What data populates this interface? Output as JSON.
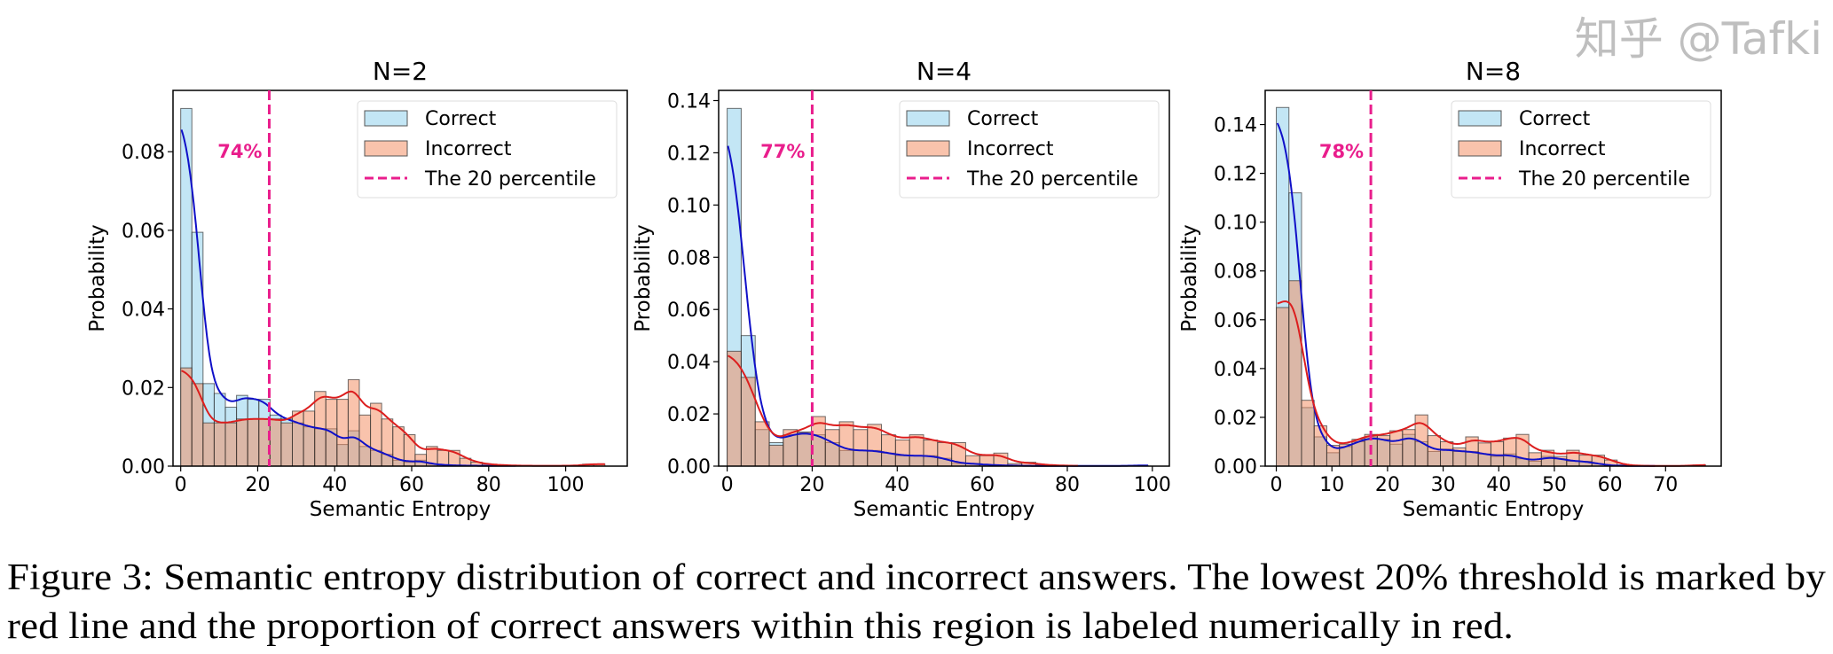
{
  "chart_data": [
    {
      "type": "histogram+kde",
      "title": "N=2",
      "xlabel": "Semantic Entropy",
      "ylabel": "Probability",
      "xlim": [
        -2,
        116
      ],
      "ylim": [
        0,
        0.0956
      ],
      "xticks": [
        0,
        20,
        40,
        60,
        80,
        100
      ],
      "yticks": [
        "0.00",
        "0.02",
        "0.04",
        "0.06",
        "0.08"
      ],
      "bin_width": 2.9,
      "percentile_line_x": 23,
      "percentile_label": "74%",
      "series": [
        {
          "name": "Correct",
          "values": [
            0.091,
            0.0595,
            0.021,
            0.0185,
            0.015,
            0.018,
            0.017,
            0.017,
            0.013,
            0.012,
            0.011,
            0.01,
            0.0095,
            0.0095,
            0.0055,
            0.009,
            0.005,
            0.004,
            0.003,
            0.0015,
            0.001,
            0.0015,
            0.0005,
            0.0003,
            0.0002,
            0.0001,
            0.0001,
            0.0001,
            0.0001,
            0.0001
          ]
        },
        {
          "name": "Incorrect",
          "values": [
            0.025,
            0.021,
            0.011,
            0.011,
            0.011,
            0.012,
            0.012,
            0.012,
            0.012,
            0.011,
            0.014,
            0.014,
            0.019,
            0.017,
            0.017,
            0.022,
            0.013,
            0.016,
            0.012,
            0.01,
            0.008,
            0.003,
            0.005,
            0.004,
            0.004,
            0.002,
            0.001,
            0.0005,
            0.0003,
            0.0002,
            0.0001,
            0.0001,
            0.0001,
            0.0001,
            0.0001,
            0.0001,
            0.0005,
            0.0005
          ]
        }
      ]
    },
    {
      "type": "histogram+kde",
      "title": "N=4",
      "xlabel": "Semantic Entropy",
      "ylabel": "Probability",
      "xlim": [
        -2,
        104
      ],
      "ylim": [
        0,
        0.1439
      ],
      "xticks": [
        0,
        20,
        40,
        60,
        80,
        100
      ],
      "yticks": [
        "0.00",
        "0.02",
        "0.04",
        "0.06",
        "0.08",
        "0.10",
        "0.12",
        "0.14"
      ],
      "bin_width": 3.3,
      "percentile_line_x": 20,
      "percentile_label": "77%",
      "series": [
        {
          "name": "Correct",
          "values": [
            0.137,
            0.05,
            0.014,
            0.009,
            0.012,
            0.013,
            0.012,
            0.009,
            0.006,
            0.006,
            0.006,
            0.005,
            0.004,
            0.004,
            0.004,
            0.003,
            0.001,
            0.001,
            0.0005,
            0.0003,
            0.0002,
            0.0001,
            0.0001,
            0.0001,
            0.0001,
            0.0001,
            0.0001,
            0.0001,
            0.0001,
            0.0003
          ]
        },
        {
          "name": "Incorrect",
          "values": [
            0.044,
            0.034,
            0.017,
            0.008,
            0.014,
            0.013,
            0.019,
            0.014,
            0.017,
            0.014,
            0.016,
            0.012,
            0.01,
            0.012,
            0.01,
            0.009,
            0.009,
            0.004,
            0.004,
            0.005,
            0.001,
            0.0015,
            0.0005,
            0.0003,
            0.0001
          ]
        }
      ]
    },
    {
      "type": "histogram+kde",
      "title": "N=8",
      "xlabel": "Semantic Entropy",
      "ylabel": "Probability",
      "xlim": [
        -2,
        80
      ],
      "ylim": [
        0,
        0.154
      ],
      "xticks": [
        0,
        10,
        20,
        30,
        40,
        50,
        60,
        70
      ],
      "yticks": [
        "0.00",
        "0.02",
        "0.04",
        "0.06",
        "0.08",
        "0.10",
        "0.12",
        "0.14"
      ],
      "bin_width": 2.27,
      "percentile_line_x": 17,
      "percentile_label": "78%",
      "series": [
        {
          "name": "Correct",
          "values": [
            0.147,
            0.112,
            0.024,
            0.012,
            0.0055,
            0.008,
            0.01,
            0.012,
            0.011,
            0.009,
            0.013,
            0.01,
            0.006,
            0.007,
            0.006,
            0.006,
            0.005,
            0.004,
            0.005,
            0.003,
            0.002,
            0.004,
            0.003,
            0.002,
            0.002,
            0.001,
            0.0002,
            0.0001,
            0.0001,
            0.0001
          ]
        },
        {
          "name": "Incorrect",
          "values": [
            0.065,
            0.076,
            0.027,
            0.0165,
            0.0085,
            0.009,
            0.011,
            0.013,
            0.0125,
            0.0145,
            0.015,
            0.021,
            0.0125,
            0.01,
            0.0075,
            0.012,
            0.0095,
            0.01,
            0.0115,
            0.013,
            0.0055,
            0.0065,
            0.004,
            0.0065,
            0.0045,
            0.0045,
            0.0025,
            0.0005,
            0.0002,
            0.0001,
            0.0001,
            0.0001,
            0.0001,
            0.0005
          ]
        }
      ]
    }
  ],
  "legend": {
    "correct": "Correct",
    "incorrect": "Incorrect",
    "percentile": "The 20 percentile"
  },
  "colors": {
    "correct_fill": "#87CEEB",
    "incorrect_fill": "#F4875A",
    "correct_kde": "#1010c8",
    "incorrect_kde": "#dc1e1e",
    "percentile_line": "#e91e8c"
  },
  "caption": {
    "line1": "Figure 3: Semantic entropy distribution of correct and incorrect answers. The lowest 20% threshold is marked by",
    "line2": "red line and the proportion of correct answers within this region is labeled numerically in red."
  },
  "watermark": "知乎 @Tafki"
}
